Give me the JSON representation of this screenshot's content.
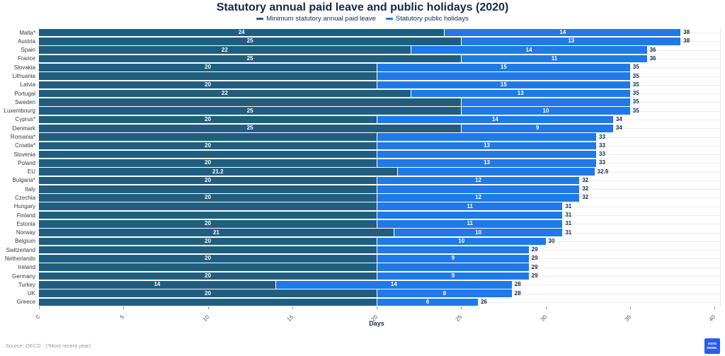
{
  "colors": {
    "paid_leave": "#205e80",
    "public_holidays": "#2079e6",
    "title_text": "#13294b",
    "total_text": "#1a2b4a",
    "logo_blue": "#2b5ce6"
  },
  "chart_data": {
    "type": "bar",
    "orientation": "horizontal",
    "stacked": true,
    "title": "Statutory annual paid leave and public holidays (2020)",
    "xlabel": "Days",
    "xlim": [
      0,
      40
    ],
    "xticks": [
      0,
      5,
      10,
      15,
      20,
      25,
      30,
      35,
      40
    ],
    "grid": "faint horizontal row lines",
    "legend": {
      "position": "top",
      "entries": [
        {
          "label": "Minimum statutory annual paid leave",
          "color": "#205e80"
        },
        {
          "label": "Statutory public holidays",
          "color": "#2079e6"
        }
      ]
    },
    "categories": [
      "Malta*",
      "Austria",
      "Spain",
      "France",
      "Slovakia",
      "Lithuania",
      "Latvia",
      "Portugal",
      "Sweden",
      "Luxembourg",
      "Cyprus*",
      "Denmark",
      "Romania*",
      "Croatia*",
      "Slovenia",
      "Poland",
      "EU",
      "Bulgaria*",
      "Italy",
      "Czechia",
      "Hungary",
      "Finland",
      "Estonia",
      "Norway",
      "Belgium",
      "Switzerland",
      "Netherlands",
      "Ireland",
      "Germany",
      "Turkey",
      "UK",
      "Greece"
    ],
    "series": [
      {
        "name": "Minimum statutory annual paid leave",
        "color": "#205e80",
        "values": [
          24,
          25,
          22,
          25,
          20,
          20,
          20,
          22,
          25,
          25,
          20,
          25,
          20,
          20,
          20,
          20,
          21.2,
          20,
          20,
          20,
          20,
          20,
          20,
          21,
          20,
          20,
          20,
          20,
          20,
          14,
          20,
          20
        ],
        "labels": [
          "24",
          "25",
          "22",
          "25",
          "20",
          "",
          "20",
          "22",
          "",
          "25",
          "20",
          "25",
          "",
          "20",
          "",
          "20",
          "21.2",
          "20",
          "",
          "20",
          "",
          "",
          "20",
          "21",
          "20",
          "",
          "20",
          "",
          "20",
          "14",
          "20",
          ""
        ]
      },
      {
        "name": "Statutory public holidays",
        "color": "#2079e6",
        "values": [
          14,
          13,
          14,
          11,
          15,
          15,
          15,
          13,
          10,
          10,
          14,
          9,
          13,
          13,
          13,
          13,
          11.7,
          12,
          12,
          12,
          11,
          11,
          11,
          10,
          10,
          9,
          9,
          9,
          9,
          14,
          8,
          6
        ],
        "labels": [
          "14",
          "13",
          "14",
          "11",
          "15",
          "",
          "15",
          "13",
          "",
          "10",
          "14",
          "9",
          "",
          "13",
          "",
          "13",
          "",
          "12",
          "",
          "12",
          "11",
          "",
          "11",
          "10",
          "10",
          "",
          "9",
          "",
          "9",
          "14",
          "8",
          "6"
        ]
      }
    ],
    "totals": {
      "values": [
        38,
        38,
        36,
        36,
        35,
        35,
        35,
        35,
        35,
        35,
        34,
        34,
        33,
        33,
        33,
        33,
        32.9,
        32,
        32,
        32,
        31,
        31,
        31,
        31,
        30,
        29,
        29,
        29,
        29,
        28,
        28,
        26
      ],
      "labels": [
        "38",
        "38",
        "36",
        "36",
        "35",
        "35",
        "35",
        "35",
        "35",
        "35",
        "34",
        "34",
        "33",
        "33",
        "33",
        "33",
        "32.9",
        "32",
        "32",
        "32",
        "31",
        "31",
        "31",
        "31",
        "30",
        "29",
        "29",
        "29",
        "29",
        "28",
        "28",
        "26"
      ]
    }
  },
  "footer": {
    "source": "Source: OECD - (*Most recent year)",
    "logo_line1": "euro",
    "logo_line2": "news."
  }
}
